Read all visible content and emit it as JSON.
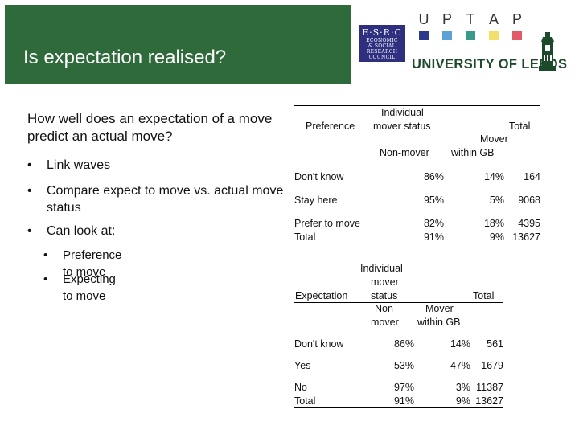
{
  "header": {
    "title": "Is expectation realised?",
    "colors": {
      "banner": "#2f6a3a",
      "esrc": "#2e2f7f",
      "leeds": "#1d4a2a"
    },
    "esrc_logo": {
      "big": "E·S·R·C",
      "lines": [
        "ECONOMIC",
        "& SOCIAL",
        "RESEARCH",
        "COUNCIL"
      ]
    },
    "uptap": {
      "letters": [
        "U",
        "P",
        "T",
        "A",
        "P"
      ],
      "colors": [
        "#2b3a8c",
        "#5ba3d6",
        "#3a9a8a",
        "#f2e06a",
        "#e05a6a"
      ]
    },
    "university": "UNIVERSITY OF LEEDS"
  },
  "left": {
    "question": "How well does an expectation of a move predict an actual move?",
    "bullets": [
      "Link waves",
      "Compare expect to move vs. actual move status",
      "Can look at:"
    ],
    "sub_bullets": [
      "Preference to move",
      "Expecting to move"
    ]
  },
  "table1": {
    "row_header": "Preference",
    "group_header": [
      "Individual",
      "mover status"
    ],
    "total_header": "Total",
    "col1": "Non-mover",
    "col2": [
      "Mover",
      "within GB"
    ],
    "rows": [
      {
        "label": "Don't know",
        "nonmover": "86%",
        "mover": "14%",
        "total": "164"
      },
      {
        "label": "Stay here",
        "nonmover": "95%",
        "mover": "5%",
        "total": "9068"
      },
      {
        "label": "Prefer to move",
        "nonmover": "82%",
        "mover": "18%",
        "total": "4395"
      },
      {
        "label": "Total",
        "nonmover": "91%",
        "mover": "9%",
        "total": "13627"
      }
    ]
  },
  "table2": {
    "row_header": "Expectation",
    "group_header": [
      "Individual",
      "mover",
      "status"
    ],
    "total_header": "Total",
    "col1": [
      "Non-",
      "mover"
    ],
    "col2": [
      "Mover",
      "within GB"
    ],
    "rows": [
      {
        "label": "Don't know",
        "nonmover": "86%",
        "mover": "14%",
        "total": "561"
      },
      {
        "label": "Yes",
        "nonmover": "53%",
        "mover": "47%",
        "total": "1679"
      },
      {
        "label": "No",
        "nonmover": "97%",
        "mover": "3%",
        "total": "11387"
      },
      {
        "label": "Total",
        "nonmover": "91%",
        "mover": "9%",
        "total": "13627"
      }
    ]
  }
}
